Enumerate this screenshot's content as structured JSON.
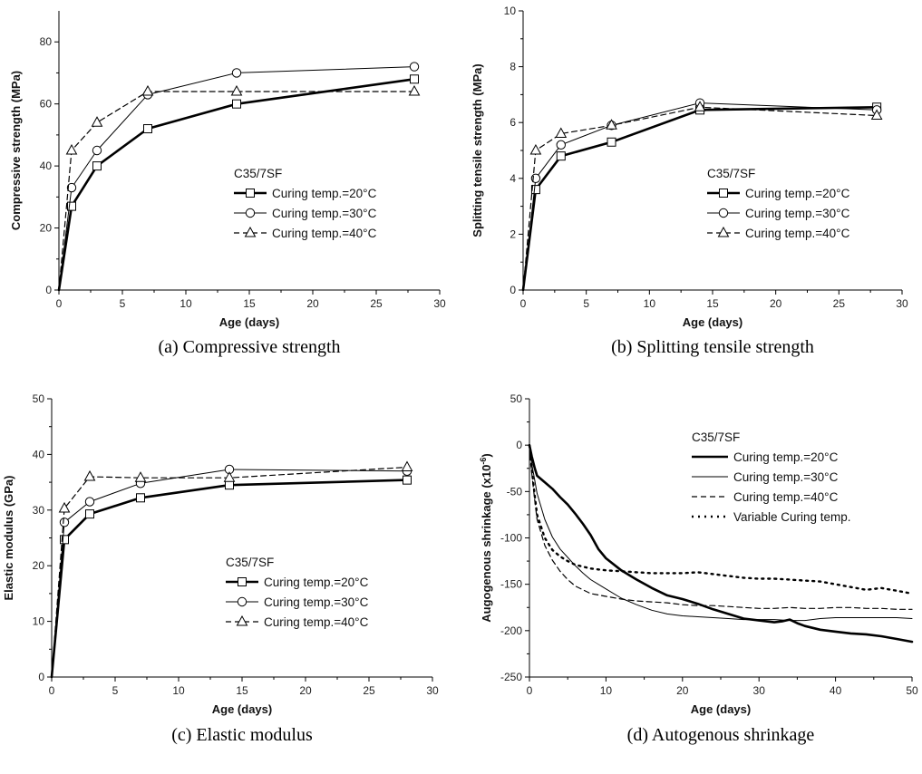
{
  "chart_data": [
    {
      "type": "line",
      "caption": "(a) Compressive strength",
      "xlabel": "Age (days)",
      "ylabel": "Compressive strength (MPa)",
      "xlim": [
        0,
        30
      ],
      "ylim": [
        0,
        90
      ],
      "xticks": [
        0,
        5,
        10,
        15,
        20,
        25,
        30
      ],
      "yticks": [
        0,
        20,
        40,
        60,
        80
      ],
      "legend_title": "C35/7SF",
      "legend_position": "right-middle",
      "series": [
        {
          "name": "Curing temp.=20°C",
          "style": "thick",
          "marker": "square",
          "x": [
            0,
            1,
            3,
            7,
            14,
            28
          ],
          "y": [
            0,
            27,
            40,
            52,
            60,
            68
          ]
        },
        {
          "name": "Curing temp.=30°C",
          "style": "thin",
          "marker": "circle",
          "x": [
            0,
            1,
            3,
            7,
            14,
            28
          ],
          "y": [
            0,
            33,
            45,
            63,
            70,
            72
          ]
        },
        {
          "name": "Curing temp.=40°C",
          "style": "dashed",
          "marker": "triangle",
          "x": [
            0,
            1,
            3,
            7,
            14,
            28
          ],
          "y": [
            0,
            45,
            54,
            64,
            64,
            64
          ]
        }
      ]
    },
    {
      "type": "line",
      "caption": "(b) Splitting tensile strength",
      "xlabel": "Age (days)",
      "ylabel": "Splitting tensile strength (MPa)",
      "xlim": [
        0,
        30
      ],
      "ylim": [
        0,
        10
      ],
      "xticks": [
        0,
        5,
        10,
        15,
        20,
        25,
        30
      ],
      "yticks": [
        0,
        2,
        4,
        6,
        8,
        10
      ],
      "legend_title": "C35/7SF",
      "legend_position": "right-middle",
      "series": [
        {
          "name": "Curing temp.=20°C",
          "style": "thick",
          "marker": "square",
          "x": [
            0,
            1,
            3,
            7,
            14,
            28
          ],
          "y": [
            0,
            3.6,
            4.8,
            5.3,
            6.45,
            6.55
          ]
        },
        {
          "name": "Curing temp.=30°C",
          "style": "thin",
          "marker": "circle",
          "x": [
            0,
            1,
            3,
            7,
            14,
            28
          ],
          "y": [
            0,
            4.0,
            5.2,
            5.9,
            6.7,
            6.45
          ]
        },
        {
          "name": "Curing temp.=40°C",
          "style": "dashed",
          "marker": "triangle",
          "x": [
            0,
            1,
            3,
            7,
            14,
            28
          ],
          "y": [
            0,
            5.0,
            5.6,
            5.9,
            6.55,
            6.25
          ]
        }
      ]
    },
    {
      "type": "line",
      "caption": "(c) Elastic modulus",
      "xlabel": "Age (days)",
      "ylabel": "Elastic modulus (GPa)",
      "xlim": [
        0,
        30
      ],
      "ylim": [
        0,
        50
      ],
      "xticks": [
        0,
        5,
        10,
        15,
        20,
        25,
        30
      ],
      "yticks": [
        0,
        10,
        20,
        30,
        40,
        50
      ],
      "legend_title": "C35/7SF",
      "legend_position": "right-middle",
      "series": [
        {
          "name": "Curing temp.=20°C",
          "style": "thick",
          "marker": "square",
          "x": [
            0,
            1,
            3,
            7,
            14,
            28
          ],
          "y": [
            0,
            24.7,
            29.3,
            32.2,
            34.5,
            35.4
          ]
        },
        {
          "name": "Curing temp.=30°C",
          "style": "thin",
          "marker": "circle",
          "x": [
            0,
            1,
            3,
            7,
            14,
            28
          ],
          "y": [
            0,
            27.8,
            31.5,
            34.8,
            37.3,
            37.0
          ]
        },
        {
          "name": "Curing temp.=40°C",
          "style": "dashed",
          "marker": "triangle",
          "x": [
            0,
            1,
            3,
            7,
            14,
            28
          ],
          "y": [
            0,
            30.3,
            36.0,
            35.8,
            35.8,
            37.7
          ]
        }
      ]
    },
    {
      "type": "line",
      "caption": "(d) Autogenous shrinkage",
      "xlabel": "Age (days)",
      "ylabel": "Augogenous shrinkage (x10",
      "ylabel_sup": "-6",
      "ylabel_end": ")",
      "xlim": [
        0,
        50
      ],
      "ylim": [
        -250,
        50
      ],
      "xticks": [
        0,
        10,
        20,
        30,
        40,
        50
      ],
      "yticks": [
        -250,
        -200,
        -150,
        -100,
        -50,
        0,
        50
      ],
      "legend_title": "C35/7SF",
      "legend_position": "top-right",
      "series": [
        {
          "name": "Curing temp.=20°C",
          "style": "thick",
          "marker": "none",
          "x": [
            0,
            0.3,
            0.7,
            1,
            2,
            3,
            4,
            5,
            6,
            7,
            8,
            9,
            10,
            12,
            14,
            16,
            18,
            20,
            22,
            24,
            26,
            28,
            30,
            32,
            33,
            34,
            35,
            36,
            38,
            40,
            42,
            44,
            46,
            48,
            50
          ],
          "y": [
            0,
            -12,
            -25,
            -33,
            -40,
            -47,
            -56,
            -64,
            -74,
            -85,
            -97,
            -112,
            -122,
            -135,
            -145,
            -154,
            -162,
            -166,
            -171,
            -177,
            -182,
            -187,
            -189,
            -191,
            -190,
            -188,
            -192,
            -195,
            -199,
            -201,
            -203,
            -204,
            -206,
            -209,
            -212
          ]
        },
        {
          "name": "Curing temp.=30°C",
          "style": "thin",
          "marker": "none",
          "x": [
            0,
            0.3,
            0.7,
            1,
            2,
            3,
            4,
            5,
            6,
            7,
            8,
            9,
            10,
            12,
            14,
            16,
            18,
            20,
            22,
            24,
            26,
            28,
            30,
            32,
            34,
            36,
            38,
            40,
            42,
            44,
            46,
            48,
            50
          ],
          "y": [
            0,
            -20,
            -38,
            -52,
            -80,
            -99,
            -112,
            -121,
            -130,
            -138,
            -145,
            -150,
            -155,
            -165,
            -172,
            -178,
            -182,
            -184,
            -185,
            -186,
            -187,
            -188,
            -188,
            -188,
            -189,
            -189,
            -187,
            -186,
            -186,
            -186,
            -186,
            -186,
            -187
          ]
        },
        {
          "name": "Curing temp.=40°C",
          "style": "dashed",
          "marker": "none",
          "x": [
            0,
            0.3,
            0.7,
            1,
            2,
            3,
            4,
            5,
            6,
            7,
            8,
            10,
            12,
            14,
            16,
            18,
            20,
            22,
            24,
            26,
            28,
            30,
            32,
            34,
            36,
            38,
            40,
            42,
            44,
            46,
            48,
            50
          ],
          "y": [
            0,
            -30,
            -60,
            -80,
            -108,
            -124,
            -136,
            -145,
            -152,
            -156,
            -160,
            -163,
            -166,
            -168,
            -169,
            -170,
            -172,
            -173,
            -173,
            -174,
            -175,
            -176,
            -176,
            -175,
            -176,
            -176,
            -175,
            -175,
            -176,
            -176,
            -177,
            -177
          ]
        },
        {
          "name": "Variable Curing temp.",
          "style": "dotted",
          "marker": "none",
          "x": [
            0,
            0.3,
            0.7,
            1,
            2,
            3,
            4,
            5,
            6,
            8,
            10,
            12,
            14,
            16,
            18,
            20,
            22,
            24,
            26,
            28,
            30,
            32,
            34,
            36,
            38,
            40,
            42,
            44,
            46,
            48,
            50
          ],
          "y": [
            0,
            -25,
            -55,
            -75,
            -100,
            -113,
            -120,
            -125,
            -129,
            -133,
            -135,
            -136,
            -137,
            -138,
            -138,
            -138,
            -137,
            -139,
            -141,
            -143,
            -144,
            -144,
            -145,
            -146,
            -147,
            -150,
            -153,
            -156,
            -154,
            -157,
            -160
          ]
        }
      ]
    }
  ]
}
